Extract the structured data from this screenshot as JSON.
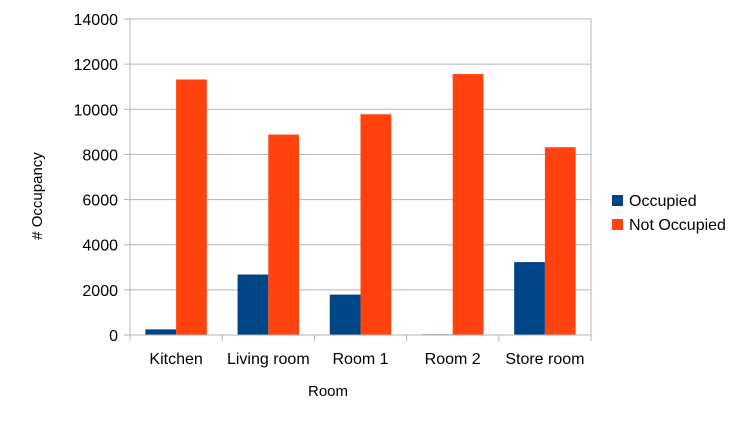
{
  "chart_data": {
    "type": "bar",
    "categories": [
      "Kitchen",
      "Living room",
      "Room 1",
      "Room 2",
      "Store room"
    ],
    "series": [
      {
        "name": "Occupied",
        "color": "#004586",
        "values": [
          250,
          2680,
          1790,
          30,
          3230
        ]
      },
      {
        "name": "Not Occupied",
        "color": "#ff420e",
        "values": [
          11320,
          8880,
          9780,
          11560,
          8320
        ]
      }
    ],
    "xlabel": "Room",
    "ylabel": "# Occupancy",
    "ylim": [
      0,
      14000
    ],
    "yticks": [
      0,
      2000,
      4000,
      6000,
      8000,
      10000,
      12000,
      14000
    ],
    "grid": true,
    "legend_position": "right"
  }
}
